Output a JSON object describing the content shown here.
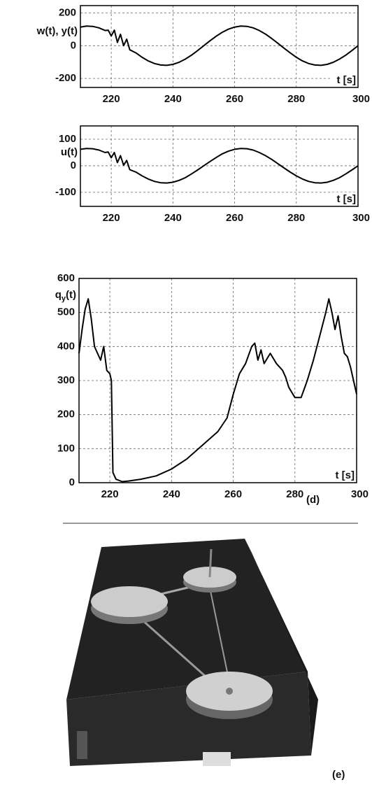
{
  "chart_data": [
    {
      "type": "line",
      "ylabel": "w(t), y(t)",
      "xlabel": "t [s]",
      "grid": true,
      "xlim": [
        210,
        300
      ],
      "xticks": [
        220,
        240,
        260,
        280,
        300
      ],
      "ylim": [
        -255,
        245
      ],
      "yticks": [
        -200,
        0,
        200
      ],
      "x": [
        210,
        212,
        214,
        216,
        218,
        219,
        220,
        221,
        222,
        223,
        224,
        225,
        226,
        228,
        230,
        232,
        234,
        236,
        238,
        240,
        242,
        244,
        246,
        248,
        250,
        252,
        254,
        256,
        258,
        260,
        262,
        264,
        266,
        268,
        270,
        272,
        274,
        276,
        278,
        280,
        282,
        284,
        286,
        288,
        290,
        292,
        294,
        296,
        298,
        300
      ],
      "series": [
        {
          "color": "#000000",
          "values": [
            114,
            120,
            118,
            109,
            93,
            95,
            60,
            95,
            20,
            70,
            0,
            40,
            -25,
            -44,
            -71,
            -93,
            -109,
            -118,
            -120,
            -114,
            -101,
            -82,
            -58,
            -30,
            0,
            30,
            58,
            82,
            101,
            114,
            120,
            118,
            109,
            93,
            71,
            44,
            15,
            -15,
            -44,
            -71,
            -93,
            -109,
            -118,
            -120,
            -114,
            -101,
            -82,
            -58,
            -30,
            0
          ]
        }
      ]
    },
    {
      "type": "line",
      "ylabel": "u(t)",
      "xlabel": "t [s]",
      "grid": true,
      "xlim": [
        210,
        300
      ],
      "xticks": [
        220,
        240,
        260,
        280,
        300
      ],
      "ylim": [
        -153,
        150
      ],
      "yticks": [
        -100,
        0,
        100
      ],
      "x": [
        210,
        212,
        214,
        216,
        218,
        219,
        220,
        221,
        222,
        223,
        224,
        225,
        226,
        228,
        230,
        232,
        234,
        236,
        238,
        240,
        242,
        244,
        246,
        248,
        250,
        252,
        254,
        256,
        258,
        260,
        262,
        264,
        266,
        268,
        270,
        272,
        274,
        276,
        278,
        280,
        282,
        284,
        286,
        288,
        290,
        292,
        294,
        296,
        298,
        300
      ],
      "series": [
        {
          "color": "#000000",
          "values": [
            62,
            65,
            64,
            59,
            50,
            52,
            30,
            50,
            12,
            38,
            2,
            20,
            -15,
            -24,
            -38,
            -50,
            -59,
            -64,
            -65,
            -62,
            -55,
            -45,
            -31,
            -16,
            0,
            16,
            31,
            45,
            55,
            62,
            65,
            64,
            59,
            50,
            38,
            24,
            8,
            -8,
            -24,
            -38,
            -50,
            -59,
            -64,
            -65,
            -62,
            -55,
            -45,
            -31,
            -16,
            0
          ]
        }
      ]
    },
    {
      "type": "line",
      "ylabel": [
        "q",
        "y",
        "(t)"
      ],
      "xlabel": "t [s]",
      "annotation": "(d)",
      "grid": true,
      "xlim": [
        210,
        300
      ],
      "xticks": [
        220,
        240,
        260,
        280,
        300
      ],
      "ylim": [
        0,
        600
      ],
      "yticks": [
        0,
        100,
        200,
        300,
        400,
        500,
        600
      ],
      "x": [
        210,
        211,
        212,
        213,
        214,
        215,
        216,
        217,
        218,
        219,
        220,
        220.5,
        221,
        222,
        224,
        226,
        230,
        235,
        240,
        245,
        250,
        255,
        258,
        260,
        262,
        264,
        266,
        267,
        268,
        269,
        270,
        272,
        274,
        276,
        277,
        278,
        280,
        282,
        284,
        286,
        288,
        290,
        291,
        292,
        293,
        294,
        295,
        296,
        297,
        298,
        299,
        300
      ],
      "series": [
        {
          "color": "#000000",
          "values": [
            380,
            450,
            510,
            540,
            480,
            400,
            380,
            360,
            400,
            330,
            320,
            300,
            30,
            10,
            3,
            5,
            10,
            20,
            40,
            70,
            110,
            150,
            190,
            260,
            320,
            350,
            400,
            410,
            360,
            390,
            350,
            380,
            350,
            330,
            310,
            280,
            250,
            250,
            300,
            360,
            430,
            500,
            540,
            500,
            450,
            490,
            430,
            380,
            370,
            340,
            300,
            260
          ]
        }
      ]
    }
  ],
  "photo": {
    "label": "(e)"
  }
}
